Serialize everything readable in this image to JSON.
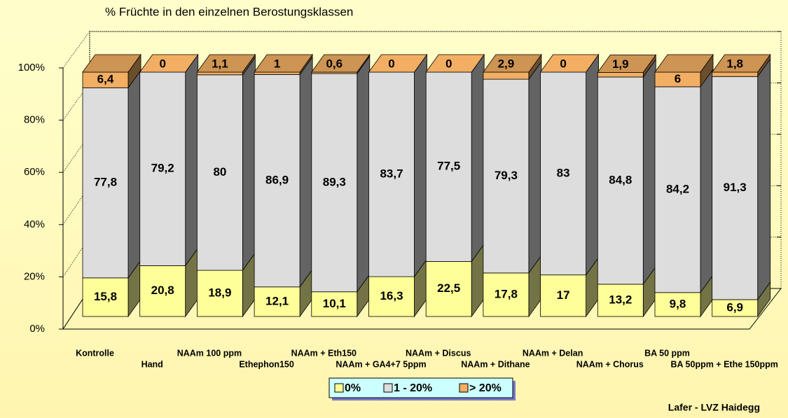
{
  "chart_data": {
    "type": "bar",
    "stacked": true,
    "title": "% Früchte in den einzelnen Berostungsklassen",
    "annotation": "Lafer - LVZ Haidegg",
    "categories": [
      "Kontrolle",
      "Hand",
      "NAAm 100 ppm",
      "Ethephon150",
      "NAAm + Eth150",
      "NAAm + GA4+7 5ppm",
      "NAAm + Discus",
      "NAAm + Dithane",
      "NAAm + Delan",
      "NAAm + Chorus",
      "BA 50 ppm",
      "BA 50ppm + Ethe 150ppm"
    ],
    "series": [
      {
        "name": "0%",
        "color": "#ffff99",
        "values": [
          15.8,
          20.8,
          18.9,
          12.1,
          10.1,
          16.3,
          22.5,
          17.8,
          17,
          13.2,
          9.8,
          6.9
        ],
        "value_labels": [
          "15,8",
          "20,8",
          "18,9",
          "12,1",
          "10,1",
          "16,3",
          "22,5",
          "17,8",
          "17",
          "13,2",
          "9,8",
          "6,9"
        ]
      },
      {
        "name": "1 - 20%",
        "color": "#dddddd",
        "values": [
          77.8,
          79.2,
          80,
          86.9,
          89.3,
          83.7,
          77.5,
          79.3,
          83,
          84.8,
          84.2,
          91.3
        ],
        "value_labels": [
          "77,8",
          "79,2",
          "80",
          "86,9",
          "89,3",
          "83,7",
          "77,5",
          "79,3",
          "83",
          "84,8",
          "84,2",
          "91,3"
        ]
      },
      {
        "name": "> 20%",
        "color": "#f2ae62",
        "values": [
          6.4,
          0,
          1.1,
          1,
          0.6,
          0,
          0,
          2.9,
          0,
          1.9,
          6,
          1.8
        ],
        "value_labels": [
          "6,4",
          "0",
          "1,1",
          "1",
          "0,6",
          "0",
          "0",
          "2,9",
          "0",
          "1,9",
          "6",
          "1,8"
        ]
      }
    ],
    "ylim": [
      0,
      100
    ],
    "yticks": [
      {
        "value": 0,
        "label": "0%"
      },
      {
        "value": 20,
        "label": "20%"
      },
      {
        "value": 40,
        "label": "40%"
      },
      {
        "value": 60,
        "label": "60%"
      },
      {
        "value": 80,
        "label": "80%"
      },
      {
        "value": 100,
        "label": "100%"
      }
    ],
    "grid": true,
    "legend": "bottom"
  }
}
